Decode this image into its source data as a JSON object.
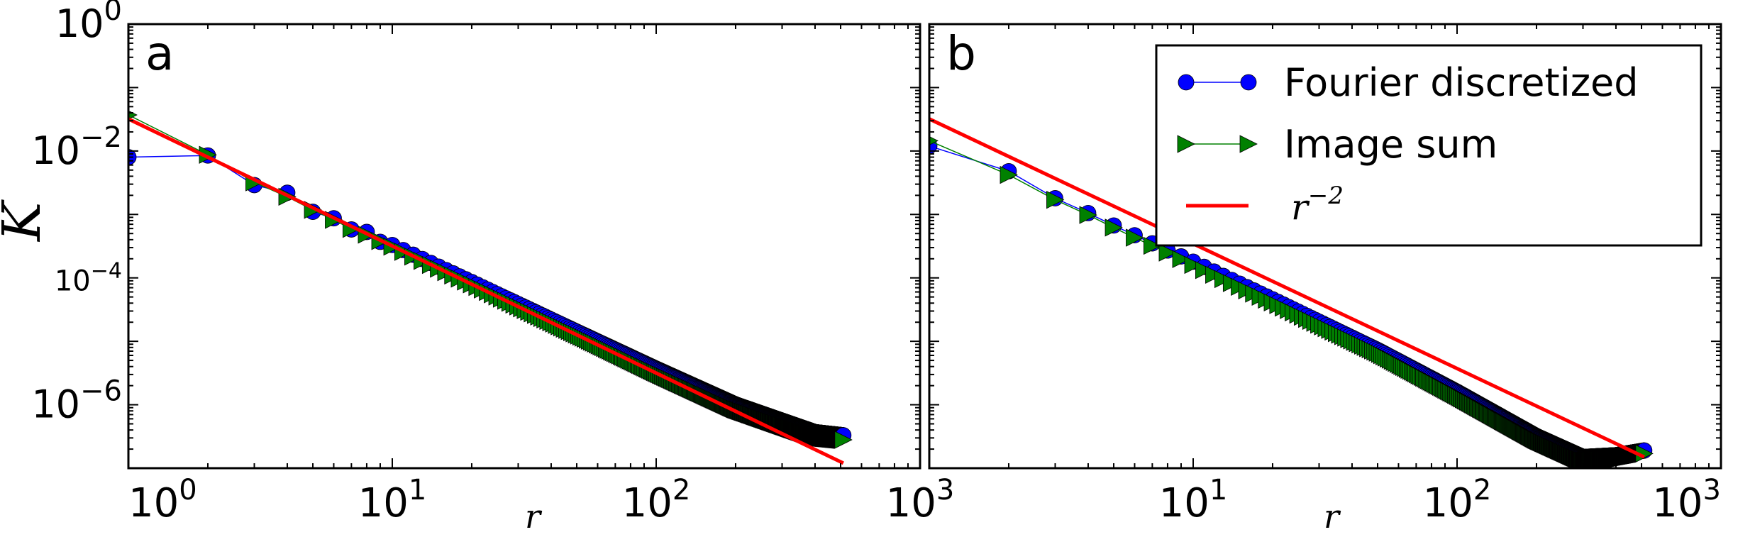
{
  "chart_data": [
    {
      "panel_label": "a",
      "type": "line",
      "scale": {
        "x": "log",
        "y": "log"
      },
      "xlim": [
        1,
        1000
      ],
      "ylim": [
        1e-07,
        1
      ],
      "xlabel": "r",
      "ylabel": "K",
      "x_ticks": [
        {
          "base": "10",
          "exp": "0"
        },
        {
          "base": "10",
          "exp": "1"
        },
        {
          "base": "10",
          "exp": "2"
        },
        {
          "base": "10",
          "exp": "3"
        }
      ],
      "y_ticks": [
        {
          "base": "10",
          "exp": "0",
          "value": 1
        },
        {
          "base": "10",
          "exp": "-2",
          "value": 0.01
        },
        {
          "base": "10",
          "exp": "-4",
          "value": 0.0001
        },
        {
          "base": "10",
          "exp": "-6",
          "value": 1e-06
        }
      ],
      "legend": null,
      "series": [
        {
          "name": "Fourier discretized",
          "color": "#0000ff",
          "marker": "circle",
          "r_range": [
            1,
            512
          ],
          "points": [
            [
              1,
              0.008
            ],
            [
              2,
              0.0085
            ],
            [
              3,
              0.0029
            ],
            [
              4,
              0.0022
            ],
            [
              5,
              0.0011
            ],
            [
              6,
              0.00087
            ],
            [
              7,
              0.00058
            ],
            [
              8,
              0.00053
            ],
            [
              9,
              0.00037
            ],
            [
              10,
              0.00033
            ],
            [
              20,
              8.6e-05
            ],
            [
              50,
              1.42e-05
            ],
            [
              100,
              3.7e-06
            ],
            [
              200,
              1.01e-06
            ],
            [
              400,
              3.7e-07
            ],
            [
              512,
              3.3e-07
            ]
          ]
        },
        {
          "name": "Image sum",
          "color": "#008000",
          "marker": "triangle-right",
          "r_range": [
            1,
            512
          ],
          "points": [
            [
              1,
              0.037
            ],
            [
              2,
              0.0087
            ],
            [
              3,
              0.0032
            ],
            [
              4,
              0.0019
            ],
            [
              5,
              0.00118
            ],
            [
              6,
              0.00082
            ],
            [
              7,
              0.00059
            ],
            [
              8,
              0.00048
            ],
            [
              9,
              0.00038
            ],
            [
              10,
              0.00031
            ],
            [
              20,
              7.9e-05
            ],
            [
              50,
              1.28e-05
            ],
            [
              100,
              3.2e-06
            ],
            [
              200,
              8.5e-07
            ],
            [
              400,
              3.1e-07
            ],
            [
              512,
              2.8e-07
            ]
          ]
        },
        {
          "name": "r^-2",
          "color": "#ff0000",
          "marker": "none",
          "points": [
            [
              1,
              0.032
            ],
            [
              512,
              1.2e-07
            ]
          ]
        }
      ]
    },
    {
      "panel_label": "b",
      "type": "line",
      "scale": {
        "x": "log",
        "y": "log"
      },
      "xlim": [
        1,
        1000
      ],
      "ylim": [
        1e-07,
        1
      ],
      "xlabel": "r",
      "ylabel": "",
      "x_ticks": [
        {
          "base": "10",
          "exp": "1"
        },
        {
          "base": "10",
          "exp": "2"
        },
        {
          "base": "10",
          "exp": "3"
        }
      ],
      "y_ticks": [],
      "legend": {
        "placement": "top-right",
        "entries": [
          {
            "label": "Fourier discretized",
            "series": 0
          },
          {
            "label": "Image sum",
            "series": 1
          },
          {
            "label_base": "r",
            "label_exp": "−2",
            "series": 2
          }
        ]
      },
      "series": [
        {
          "name": "Fourier discretized",
          "color": "#0000ff",
          "marker": "circle",
          "r_range": [
            1,
            512
          ],
          "points": [
            [
              1,
              0.012
            ],
            [
              2,
              0.0048
            ],
            [
              3,
              0.0018
            ],
            [
              4,
              0.00105
            ],
            [
              5,
              0.00067
            ],
            [
              6,
              0.00047
            ],
            [
              7,
              0.00035
            ],
            [
              8,
              0.00027
            ],
            [
              10,
              0.00018
            ],
            [
              20,
              4.6e-05
            ],
            [
              50,
              7.3e-06
            ],
            [
              100,
              1.6e-06
            ],
            [
              200,
              3.2e-07
            ],
            [
              300,
              1.5e-07
            ],
            [
              400,
              1.6e-07
            ],
            [
              512,
              1.9e-07
            ]
          ]
        },
        {
          "name": "Image sum",
          "color": "#008000",
          "marker": "triangle-right",
          "r_range": [
            1,
            512
          ],
          "points": [
            [
              1,
              0.0145
            ],
            [
              2,
              0.0042
            ],
            [
              3,
              0.0017
            ],
            [
              4,
              0.00098
            ],
            [
              5,
              0.00062
            ],
            [
              6,
              0.00043
            ],
            [
              7,
              0.00032
            ],
            [
              8,
              0.00025
            ],
            [
              10,
              0.00016
            ],
            [
              20,
              4.1e-05
            ],
            [
              50,
              6.6e-06
            ],
            [
              100,
              1.4e-06
            ],
            [
              200,
              2.8e-07
            ],
            [
              300,
              1.3e-07
            ],
            [
              400,
              1.4e-07
            ],
            [
              512,
              1.7e-07
            ]
          ]
        },
        {
          "name": "r^-2",
          "color": "#ff0000",
          "marker": "none",
          "points": [
            [
              1,
              0.032
            ],
            [
              512,
              1.5e-07
            ]
          ]
        }
      ]
    }
  ]
}
